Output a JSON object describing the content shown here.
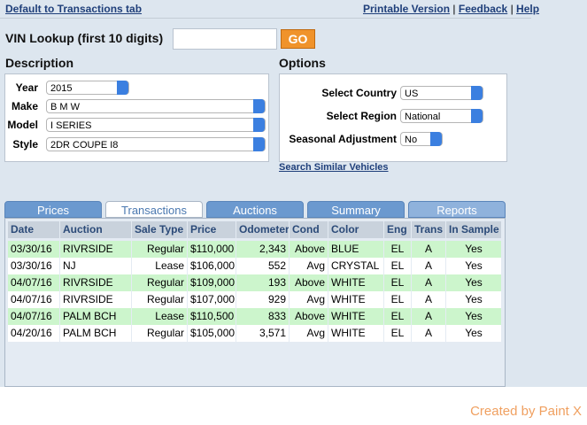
{
  "top_links": {
    "left": "Default to Transactions tab",
    "right": [
      "Printable Version",
      "Feedback",
      "Help"
    ],
    "separator": "|"
  },
  "vin": {
    "label": "VIN Lookup (first 10 digits)",
    "button": "GO"
  },
  "description": {
    "title": "Description",
    "fields": [
      {
        "label": "Year",
        "value": "2015"
      },
      {
        "label": "Make",
        "value": "B M W"
      },
      {
        "label": "Model",
        "value": "I SERIES"
      },
      {
        "label": "Style",
        "value": "2DR COUPE I8"
      }
    ]
  },
  "options": {
    "title": "Options",
    "fields": [
      {
        "label": "Select Country",
        "value": "US"
      },
      {
        "label": "Select Region",
        "value": "National"
      },
      {
        "label": "Seasonal Adjustment",
        "value": "No"
      }
    ],
    "link": "Search Similar Vehicles"
  },
  "tabs": [
    "Prices",
    "Transactions",
    "Auctions",
    "Summary",
    "Reports"
  ],
  "table": {
    "header": [
      "Date",
      "Auction",
      "Sale Type",
      "Price",
      "Odometer",
      "Cond",
      "Color",
      "Eng",
      "Trans",
      "In Sample"
    ],
    "rows": [
      [
        "03/30/16",
        "RIVRSIDE",
        "Regular",
        "$110,000",
        "2,343",
        "Above",
        "BLUE",
        "EL",
        "A",
        "Yes"
      ],
      [
        "03/30/16",
        "NJ",
        "Lease",
        "$106,000",
        "552",
        "Avg",
        "CRYSTAL",
        "EL",
        "A",
        "Yes"
      ],
      [
        "04/07/16",
        "RIVRSIDE",
        "Regular",
        "$109,000",
        "193",
        "Above",
        "WHITE",
        "EL",
        "A",
        "Yes"
      ],
      [
        "04/07/16",
        "RIVRSIDE",
        "Regular",
        "$107,000",
        "929",
        "Avg",
        "WHITE",
        "EL",
        "A",
        "Yes"
      ],
      [
        "04/07/16",
        "PALM BCH",
        "Lease",
        "$110,500",
        "833",
        "Above",
        "WHITE",
        "EL",
        "A",
        "Yes"
      ],
      [
        "04/20/16",
        "PALM BCH",
        "Regular",
        "$105,000",
        "3,571",
        "Avg",
        "WHITE",
        "EL",
        "A",
        "Yes"
      ]
    ]
  },
  "watermark": "Created by Paint X"
}
